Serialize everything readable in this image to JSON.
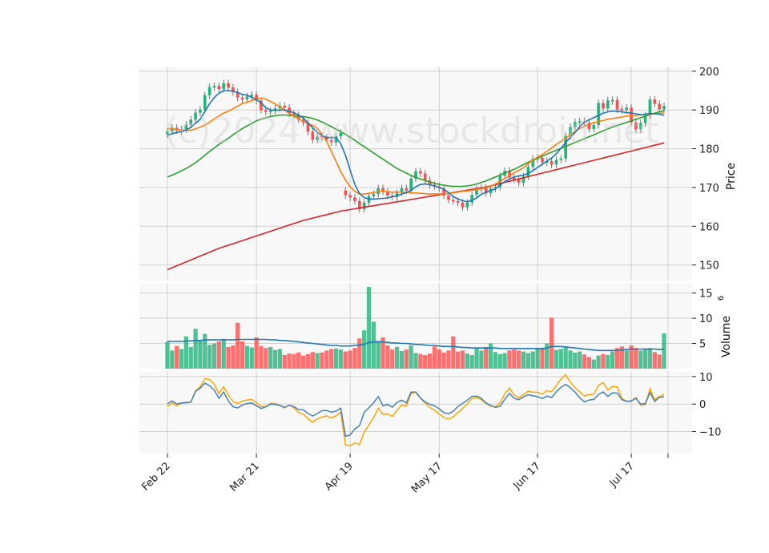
{
  "chart_data": {
    "type": "candlestick",
    "watermark": "(c)2024 www.stockdroid.net",
    "colors": {
      "up": "#26b37a",
      "down": "#ff4d4d",
      "ema5": "#1f77b4",
      "ema10": "#ff7f0e",
      "ema20": "#2ca02c",
      "ema50": "#d62728",
      "volume_avg": "#1f77b4",
      "osc_fast": "#4682b4",
      "osc_slow": "#ffa500",
      "panel_bg": "#f8f8f8",
      "grid": "#d0d0d0"
    },
    "x_tick_labels": [
      "Feb 22",
      "Mar 21",
      "Apr 19",
      "May 17",
      "Jun 17",
      "Jul 17"
    ],
    "price_panel": {
      "ylabel": "Price",
      "ylim": [
        146,
        201
      ],
      "ticks": [
        150,
        160,
        170,
        180,
        190,
        200
      ]
    },
    "volume_panel": {
      "ylabel": "Volume",
      "ylabel_exp": "6",
      "ylim": [
        0,
        17
      ],
      "ticks": [
        5,
        10,
        15
      ]
    },
    "oscillator_panel": {
      "ylim": [
        -18,
        12
      ],
      "ticks": [
        -10,
        0,
        10
      ]
    },
    "series": {
      "close": [
        184.5,
        185.4,
        184.7,
        185.0,
        186.2,
        187.5,
        189.3,
        190.1,
        193.8,
        195.9,
        196.2,
        195.4,
        196.9,
        195.8,
        194.6,
        193.2,
        192.7,
        193.5,
        193.9,
        192.4,
        190.0,
        189.5,
        189.8,
        190.4,
        191.1,
        190.6,
        189.1,
        188.7,
        187.5,
        186.7,
        184.4,
        182.3,
        183.1,
        182.9,
        182.3,
        181.6,
        183.2,
        184.1,
        168.0,
        167.4,
        166.5,
        164.4,
        166.1,
        167.8,
        168.3,
        169.8,
        168.9,
        167.9,
        167.5,
        168.6,
        169.8,
        169.2,
        172.3,
        174.2,
        173.6,
        171.9,
        170.6,
        170.3,
        169.8,
        167.9,
        166.8,
        166.4,
        166.1,
        164.9,
        166.1,
        168.1,
        169.6,
        169.9,
        168.5,
        169.7,
        170.1,
        173.0,
        174.3,
        172.6,
        172.0,
        171.2,
        172.8,
        175.3,
        177.4,
        177.7,
        176.5,
        176.8,
        175.9,
        177.1,
        177.5,
        183.3,
        185.6,
        186.9,
        187.1,
        186.7,
        185.1,
        186.1,
        191.8,
        190.4,
        192.5,
        192.6,
        190.1,
        189.9,
        190.6,
        186.8,
        185.0,
        186.6,
        188.6,
        192.7,
        191.6,
        190.2,
        191.0
      ],
      "up": [
        true,
        true,
        false,
        true,
        true,
        true,
        true,
        true,
        true,
        true,
        true,
        false,
        true,
        false,
        false,
        false,
        false,
        true,
        true,
        false,
        false,
        false,
        true,
        true,
        true,
        false,
        false,
        false,
        false,
        false,
        false,
        false,
        true,
        false,
        false,
        false,
        true,
        true,
        false,
        false,
        false,
        false,
        true,
        true,
        true,
        true,
        false,
        false,
        false,
        true,
        true,
        false,
        true,
        true,
        false,
        false,
        false,
        false,
        false,
        false,
        false,
        false,
        false,
        false,
        true,
        true,
        true,
        true,
        false,
        true,
        true,
        true,
        true,
        false,
        false,
        false,
        true,
        true,
        true,
        true,
        false,
        true,
        false,
        true,
        true,
        true,
        true,
        true,
        true,
        false,
        false,
        true,
        true,
        false,
        true,
        true,
        false,
        false,
        true,
        false,
        false,
        true,
        true,
        true,
        false,
        false,
        true
      ],
      "volume": [
        5.3,
        3.6,
        4.5,
        3.9,
        6.4,
        4.3,
        7.9,
        5.6,
        6.9,
        4.7,
        5.0,
        5.4,
        5.9,
        4.3,
        4.6,
        9.1,
        5.4,
        4.5,
        4.2,
        6.2,
        4.5,
        4.1,
        4.3,
        3.7,
        3.9,
        2.7,
        3.0,
        2.9,
        3.2,
        2.6,
        2.9,
        3.3,
        3.1,
        3.2,
        3.6,
        3.9,
        4.0,
        3.8,
        3.4,
        3.6,
        4.1,
        6.0,
        7.6,
        16.2,
        9.3,
        5.5,
        6.2,
        4.6,
        3.8,
        4.3,
        3.5,
        3.8,
        4.6,
        3.1,
        2.9,
        2.7,
        3.0,
        4.4,
        3.8,
        3.2,
        3.6,
        6.4,
        3.4,
        3.6,
        3.0,
        2.7,
        4.1,
        3.6,
        4.3,
        5.0,
        3.3,
        2.9,
        3.1,
        3.6,
        3.8,
        3.6,
        3.4,
        3.1,
        3.4,
        4.1,
        4.0,
        5.0,
        10.1,
        3.7,
        3.9,
        4.2,
        3.6,
        3.2,
        3.4,
        2.8,
        2.3,
        1.8,
        2.6,
        2.9,
        2.7,
        3.4,
        4.1,
        4.4,
        3.6,
        4.6,
        4.1,
        3.6,
        4.0,
        4.1,
        3.3,
        2.8,
        7.0
      ],
      "ema5": [
        183.4,
        183.9,
        184.2,
        184.4,
        184.8,
        185.5,
        186.6,
        187.6,
        189.6,
        191.6,
        193.2,
        194.3,
        195.0,
        195.0,
        194.8,
        194.5,
        194.0,
        193.8,
        193.3,
        192.7,
        191.8,
        190.6,
        190.0,
        189.9,
        190.0,
        190.0,
        189.7,
        189.3,
        188.7,
        187.9,
        186.6,
        185.4,
        184.2,
        183.4,
        182.9,
        182.9,
        182.8,
        181.3,
        178.3,
        174.5,
        170.8,
        168.4,
        167.4,
        167.0,
        167.0,
        167.1,
        167.2,
        167.3,
        167.6,
        167.9,
        168.3,
        168.7,
        169.2,
        170.2,
        170.8,
        170.9,
        170.7,
        170.4,
        170.0,
        169.5,
        168.7,
        167.7,
        167.0,
        166.6,
        166.3,
        166.7,
        167.3,
        168.2,
        168.8,
        169.2,
        169.6,
        170.6,
        171.5,
        172.2,
        172.7,
        173.0,
        173.2,
        173.6,
        174.3,
        175.2,
        176.0,
        176.8,
        177.6,
        178.7,
        180.1,
        181.6,
        183.0,
        184.2,
        185.7,
        186.8,
        187.5,
        188.0,
        188.6,
        189.2,
        189.5,
        189.7,
        189.7,
        189.5,
        189.3,
        189.2,
        189.0,
        188.8,
        188.9,
        189.1,
        189.0,
        188.9,
        188.6
      ],
      "ema10": [
        185.2,
        185.1,
        185.0,
        184.8,
        184.7,
        184.8,
        185.1,
        185.6,
        186.1,
        186.8,
        187.7,
        188.5,
        189.2,
        189.7,
        190.3,
        191.0,
        191.7,
        192.0,
        192.4,
        192.9,
        193.0,
        192.8,
        192.2,
        191.6,
        190.8,
        190.0,
        189.1,
        188.4,
        187.7,
        187.0,
        186.5,
        186.0,
        185.2,
        183.7,
        181.8,
        179.3,
        176.7,
        174.1,
        171.9,
        170.2,
        169.0,
        168.3,
        168.3,
        168.5,
        168.7,
        168.9,
        169.0,
        168.9,
        168.8,
        168.8,
        168.8,
        168.7,
        168.6,
        168.6,
        168.5,
        168.4,
        168.3,
        168.3,
        168.3,
        168.4,
        168.5,
        168.6,
        168.8,
        169.0,
        169.1,
        169.3,
        169.5,
        169.7,
        169.9,
        170.3,
        170.9,
        171.6,
        172.3,
        173.0,
        173.8,
        174.4,
        175.1,
        176.1,
        177.1,
        177.8,
        178.5,
        179.3,
        180.2,
        181.1,
        181.9,
        182.7,
        183.6,
        184.4,
        185.2,
        185.8,
        186.3,
        186.7,
        187.0,
        187.3,
        187.6,
        187.8,
        188.0,
        188.2,
        188.4,
        188.5,
        188.6,
        188.7,
        188.8,
        188.9,
        189.0,
        189.1,
        189.2
      ],
      "ema20": [
        172.7,
        173.2,
        173.7,
        174.3,
        174.9,
        175.6,
        176.4,
        177.3,
        178.3,
        179.3,
        180.2,
        181.1,
        181.9,
        182.7,
        183.6,
        184.4,
        185.2,
        185.9,
        186.5,
        187.2,
        187.6,
        188.0,
        188.3,
        188.5,
        188.7,
        188.7,
        188.6,
        188.5,
        188.4,
        188.3,
        188.1,
        187.8,
        187.4,
        186.9,
        186.3,
        185.7,
        185.0,
        184.4,
        183.7,
        183.0,
        182.2,
        181.3,
        180.5,
        179.7,
        178.9,
        178.1,
        177.3,
        176.5,
        175.7,
        174.9,
        174.3,
        173.7,
        173.1,
        172.6,
        172.2,
        171.8,
        171.4,
        171.1,
        170.8,
        170.6,
        170.4,
        170.3,
        170.3,
        170.3,
        170.4,
        170.6,
        170.9,
        171.3,
        171.7,
        172.2,
        172.7,
        173.2,
        173.7,
        174.2,
        174.7,
        175.3,
        175.9,
        176.5,
        177.0,
        177.5,
        178.1,
        178.6,
        179.1,
        179.6,
        180.1,
        180.6,
        181.1,
        181.6,
        182.1,
        182.6,
        183.1,
        183.6,
        184.1,
        184.6,
        185.1,
        185.6,
        186.0,
        186.4,
        186.8,
        187.2,
        187.6,
        188.0,
        188.4,
        188.8,
        189.2,
        189.5,
        189.8
      ],
      "ema50": [
        148.8,
        149.3,
        149.8,
        150.3,
        150.8,
        151.3,
        151.8,
        152.3,
        152.8,
        153.3,
        153.8,
        154.3,
        154.7,
        155.1,
        155.5,
        155.9,
        156.3,
        156.7,
        157.1,
        157.5,
        157.9,
        158.3,
        158.7,
        159.1,
        159.5,
        159.9,
        160.3,
        160.7,
        161.1,
        161.5,
        161.8,
        162.1,
        162.4,
        162.7,
        163.0,
        163.3,
        163.6,
        163.9,
        164.1,
        164.3,
        164.5,
        164.7,
        164.9,
        165.1,
        165.3,
        165.5,
        165.7,
        165.9,
        166.1,
        166.3,
        166.5,
        166.7,
        166.9,
        167.1,
        167.3,
        167.5,
        167.7,
        167.9,
        168.1,
        168.3,
        168.5,
        168.7,
        168.9,
        169.1,
        169.3,
        169.5,
        169.7,
        169.9,
        170.1,
        170.4,
        170.7,
        171.0,
        171.3,
        171.6,
        171.9,
        172.2,
        172.5,
        172.8,
        173.1,
        173.4,
        173.7,
        174.0,
        174.3,
        174.6,
        174.9,
        175.2,
        175.5,
        175.8,
        176.1,
        176.4,
        176.7,
        177.0,
        177.3,
        177.6,
        177.9,
        178.2,
        178.5,
        178.8,
        179.1,
        179.4,
        179.7,
        180.0,
        180.3,
        180.6,
        180.9,
        181.2,
        181.5
      ],
      "volume_avg": [
        5.4,
        5.4,
        5.4,
        5.4,
        5.5,
        5.5,
        5.6,
        5.6,
        5.7,
        5.7,
        5.7,
        5.7,
        5.7,
        5.7,
        5.7,
        5.8,
        5.8,
        5.8,
        5.8,
        5.8,
        5.8,
        5.8,
        5.7,
        5.7,
        5.6,
        5.6,
        5.5,
        5.4,
        5.3,
        5.2,
        5.1,
        5.0,
        4.9,
        4.8,
        4.7,
        4.6,
        4.6,
        4.5,
        4.5,
        4.5,
        4.6,
        4.7,
        4.8,
        5.2,
        5.3,
        5.3,
        5.3,
        5.2,
        5.1,
        5.1,
        5.0,
        5.0,
        4.9,
        4.8,
        4.8,
        4.7,
        4.6,
        4.6,
        4.5,
        4.4,
        4.4,
        4.4,
        4.3,
        4.2,
        4.2,
        4.1,
        4.1,
        4.1,
        4.1,
        4.1,
        4.1,
        4.0,
        4.0,
        4.0,
        4.0,
        4.0,
        4.0,
        4.0,
        4.0,
        4.0,
        4.0,
        4.1,
        4.4,
        4.4,
        4.4,
        4.3,
        4.2,
        4.1,
        4.0,
        3.9,
        3.8,
        3.7,
        3.6,
        3.6,
        3.6,
        3.6,
        3.6,
        3.7,
        3.8,
        3.9,
        3.9,
        3.9,
        3.9,
        3.9,
        3.9,
        3.8,
        3.9
      ],
      "osc_fast": [
        0.1,
        1.2,
        0.0,
        0.4,
        0.6,
        0.7,
        4.6,
        5.8,
        7.6,
        6.7,
        5.1,
        2.1,
        4.4,
        1.2,
        -1.0,
        -1.4,
        -0.3,
        0.2,
        0.4,
        -0.6,
        -1.6,
        -1.0,
        0.0,
        -0.1,
        -0.5,
        -1.2,
        -0.4,
        -0.9,
        -2.0,
        -2.1,
        -3.4,
        -4.3,
        -3.4,
        -2.4,
        -2.3,
        -3.0,
        -2.5,
        -1.5,
        -11.7,
        -11.2,
        -9.0,
        -7.9,
        -3.0,
        -1.3,
        0.5,
        2.7,
        -0.6,
        -0.1,
        -1.1,
        0.6,
        1.4,
        0.4,
        4.4,
        4.3,
        2.2,
        0.8,
        -0.1,
        -0.6,
        -1.7,
        -3.1,
        -3.5,
        -2.6,
        -0.9,
        0.3,
        1.4,
        2.8,
        2.9,
        2.1,
        0.4,
        -0.5,
        -1.2,
        -0.8,
        1.7,
        3.9,
        2.1,
        1.6,
        2.6,
        3.4,
        3.0,
        2.7,
        2.0,
        2.9,
        2.4,
        4.5,
        6.1,
        7.2,
        5.9,
        4.4,
        2.3,
        0.8,
        1.5,
        1.7,
        3.5,
        4.4,
        2.8,
        4.1,
        4.0,
        1.6,
        1.0,
        1.2,
        2.1,
        0.0,
        0.2,
        4.2,
        1.0,
        2.5,
        2.6
      ],
      "osc_slow": [
        -0.9,
        0.5,
        -0.6,
        0.3,
        0.4,
        0.6,
        4.8,
        6.3,
        9.3,
        8.9,
        7.2,
        3.8,
        6.3,
        3.3,
        1.0,
        0.2,
        1.1,
        1.5,
        1.7,
        0.5,
        -0.9,
        -0.9,
        0.3,
        0.2,
        -0.4,
        -1.4,
        -0.4,
        -1.3,
        -3.1,
        -3.6,
        -5.3,
        -6.6,
        -5.4,
        -4.7,
        -4.3,
        -5.0,
        -4.3,
        -3.0,
        -14.8,
        -15.1,
        -14.1,
        -14.7,
        -10.1,
        -7.6,
        -4.9,
        -1.5,
        -3.7,
        -3.6,
        -4.5,
        -2.3,
        -0.4,
        -0.7,
        3.8,
        4.5,
        2.2,
        0.3,
        -1.2,
        -2.2,
        -3.6,
        -4.9,
        -5.4,
        -4.7,
        -3.1,
        -1.6,
        0.1,
        2.0,
        2.4,
        1.7,
        0.2,
        -0.7,
        -1.0,
        0.5,
        3.7,
        5.8,
        3.3,
        2.3,
        3.4,
        4.7,
        4.3,
        4.3,
        3.6,
        4.9,
        4.5,
        6.8,
        9.1,
        10.6,
        8.0,
        5.9,
        4.5,
        2.9,
        3.4,
        3.6,
        6.8,
        7.8,
        5.1,
        6.4,
        6.2,
        2.1,
        1.0,
        1.0,
        2.4,
        -0.4,
        -0.3,
        5.6,
        1.6,
        2.8,
        3.4
      ]
    }
  }
}
